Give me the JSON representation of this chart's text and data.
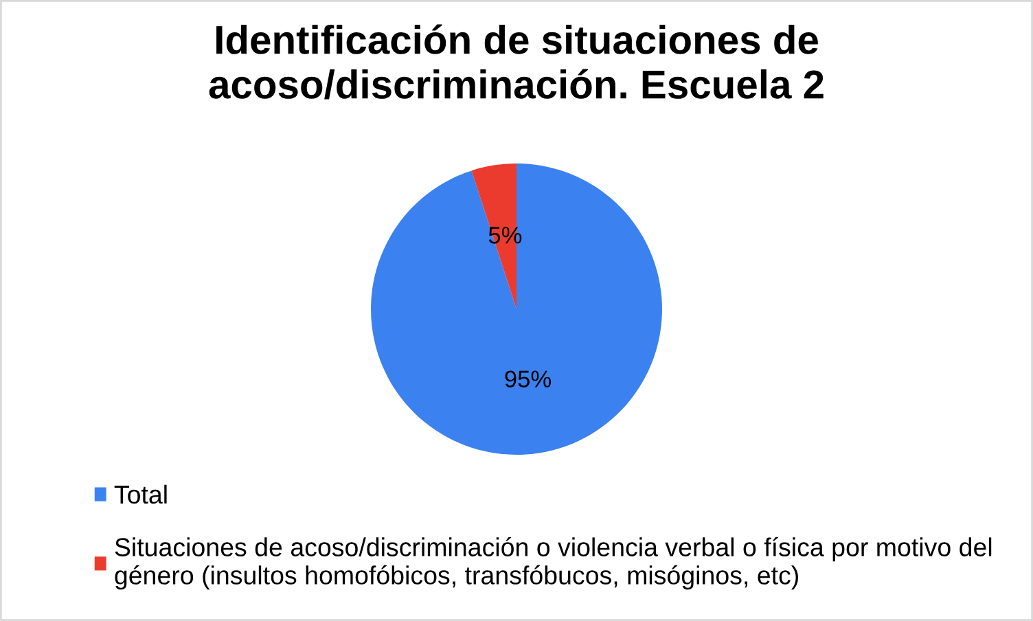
{
  "chart_data": {
    "type": "pie",
    "title": "Identificación de situaciones de acoso/discriminación. Escuela 2",
    "categories": [
      "Total",
      "Situaciones de acoso/discriminación o violencia verbal o física por motivo del género (insultos homofóbicos, transfóbucos, misóginos, etc)"
    ],
    "values": [
      95,
      5
    ],
    "colors": [
      "#3b82f0",
      "#ea3b2e"
    ],
    "value_labels": [
      "95%",
      "5%"
    ],
    "legend": "bottom"
  }
}
